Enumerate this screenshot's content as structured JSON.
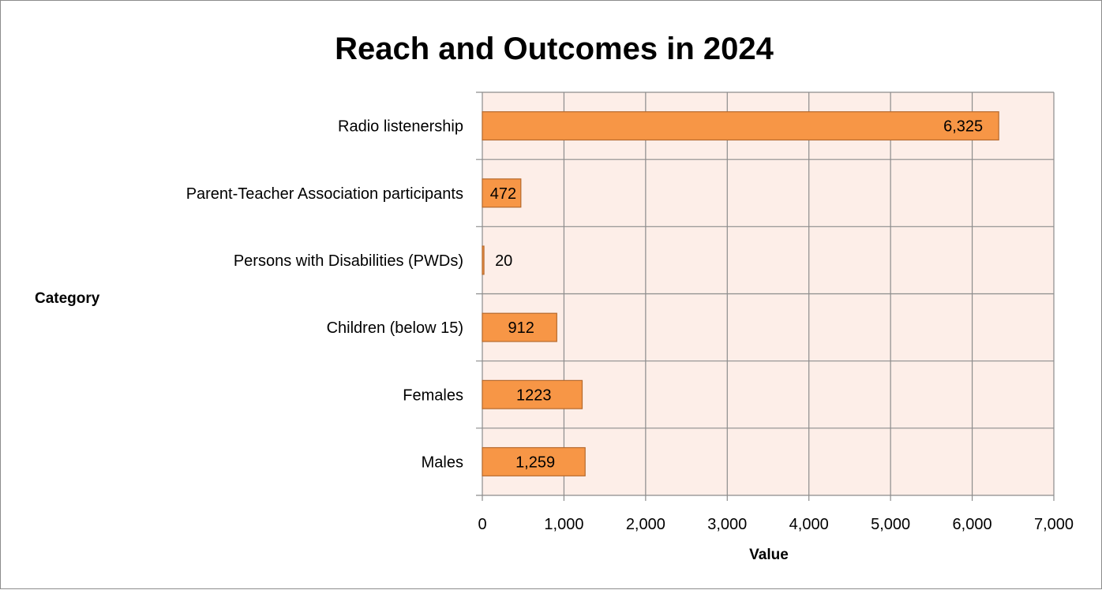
{
  "chart_data": {
    "type": "bar",
    "orientation": "horizontal",
    "title": "Reach and Outcomes in 2024",
    "xlabel": "Value",
    "ylabel": "Category",
    "xlim": [
      0,
      7000
    ],
    "x_ticks": [
      0,
      1000,
      2000,
      3000,
      4000,
      5000,
      6000,
      7000
    ],
    "x_tick_labels": [
      "0",
      "1,000",
      "2,000",
      "3,000",
      "4,000",
      "5,000",
      "6,000",
      "7,000"
    ],
    "categories": [
      "Radio listenership",
      "Parent-Teacher Association participants",
      "Persons with Disabilities (PWDs)",
      "Children (below 15)",
      "Females",
      "Males"
    ],
    "values": [
      6325,
      472,
      20,
      912,
      1223,
      1259
    ],
    "data_labels": [
      "6,325",
      "472",
      "20",
      "912",
      "1223",
      "1,259"
    ],
    "grid": true,
    "legend": "none",
    "colors": {
      "bar_fill": "#f79646",
      "bar_stroke": "#b66a2e",
      "plot_background": "#fdeee8",
      "grid": "#8c8c8c"
    }
  }
}
